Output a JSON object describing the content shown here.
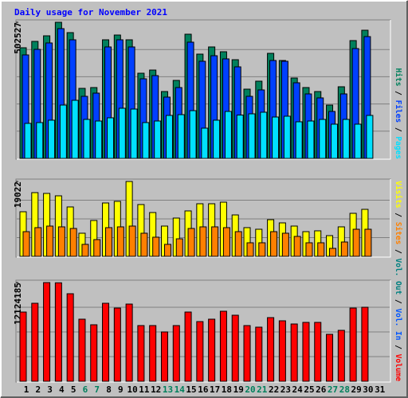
{
  "chart_data": [
    {
      "type": "bar",
      "title": "Daily usage for November 2021",
      "title_color": "#0000ff",
      "ylim": [
        0,
        502527
      ],
      "yticks": [
        502527
      ],
      "grid": true,
      "separator": "/",
      "series": [
        {
          "name": "Hits",
          "color": "#00805c",
          "values": [
            408500,
            432000,
            452600,
            502527,
            464400,
            258600,
            261600,
            437900,
            455500,
            437900,
            314500,
            326200,
            246900,
            288000,
            458500,
            385000,
            411500,
            393800,
            364400,
            255700,
            285100,
            387900,
            361500,
            296800,
            261600,
            246900,
            196900,
            264500,
            435000,
            473200,
            null
          ]
        },
        {
          "name": "Files",
          "color": "#0040ff",
          "values": [
            382100,
            402600,
            426200,
            479100,
            437900,
            229200,
            241000,
            411500,
            437900,
            411500,
            293900,
            305700,
            226300,
            261600,
            429100,
            358600,
            379100,
            367400,
            338000,
            229200,
            252800,
            361500,
            358600,
            279200,
            238100,
            223400,
            173400,
            238100,
            405600,
            449700,
            null
          ]
        },
        {
          "name": "Pages",
          "color": "#00e0ff",
          "values": [
            129300,
            132300,
            141100,
            196900,
            214500,
            144000,
            138100,
            149900,
            185200,
            182200,
            132300,
            138100,
            158700,
            161600,
            176300,
            111700,
            141100,
            173400,
            160000,
            164600,
            170500,
            152800,
            155800,
            135200,
            138100,
            144000,
            126400,
            144000,
            126400,
            158700,
            null
          ]
        }
      ]
    },
    {
      "type": "bar",
      "ylim": [
        0,
        19022
      ],
      "yticks": [
        19022
      ],
      "grid": true,
      "series": [
        {
          "name": "Visits",
          "color": "#ffff00",
          "values": [
            11330,
            16190,
            15990,
            15380,
            12550,
            5870,
            9110,
            13560,
            13970,
            19022,
            13160,
            11130,
            7690,
            9720,
            11540,
            13360,
            13360,
            13760,
            10520,
            7290,
            6880,
            9310,
            8500,
            7690,
            6270,
            6480,
            5260,
            7490,
            10930,
            11940,
            null
          ]
        },
        {
          "name": "Sites",
          "color": "#ff8000",
          "values": [
            6270,
            7290,
            7690,
            7490,
            7080,
            3040,
            4250,
            7290,
            7490,
            7690,
            5870,
            4860,
            3040,
            4450,
            7080,
            7490,
            7490,
            7290,
            6270,
            3440,
            3440,
            6270,
            5870,
            5060,
            3440,
            3440,
            2020,
            3640,
            6880,
            6880,
            null
          ]
        }
      ]
    },
    {
      "type": "bar",
      "ylim": [
        0,
        12124185
      ],
      "yticks": [
        12124185
      ],
      "grid": true,
      "categories": [
        "1",
        "2",
        "3",
        "4",
        "5",
        "6",
        "7",
        "8",
        "9",
        "10",
        "11",
        "12",
        "13",
        "14",
        "15",
        "16",
        "17",
        "18",
        "19",
        "20",
        "21",
        "22",
        "23",
        "24",
        "25",
        "26",
        "27",
        "28",
        "29",
        "30",
        "31"
      ],
      "category_colors": [
        "#000000",
        "#000000",
        "#000000",
        "#000000",
        "#000000",
        "#00805c",
        "#00805c",
        "#000000",
        "#000000",
        "#000000",
        "#000000",
        "#000000",
        "#00805c",
        "#00805c",
        "#000000",
        "#000000",
        "#000000",
        "#000000",
        "#000000",
        "#00805c",
        "#00805c",
        "#000000",
        "#000000",
        "#000000",
        "#000000",
        "#000000",
        "#00805c",
        "#00805c",
        "#000000",
        "#000000",
        "#000000"
      ],
      "legend": [
        {
          "name": "Vol. Out",
          "color": "#008080"
        },
        {
          "name": "Vol. In",
          "color": "#0055ff"
        }
      ],
      "series": [
        {
          "name": "Volume",
          "color": "#ff0000",
          "values": [
            8506000,
            9582000,
            12124185,
            12100000,
            10755000,
            7627000,
            6942000,
            9582000,
            8995000,
            9484000,
            6844000,
            6844000,
            6062000,
            6844000,
            8506000,
            7333000,
            7627000,
            8604000,
            8115000,
            6844000,
            6649000,
            7822000,
            7431000,
            7040000,
            7235000,
            7235000,
            5769000,
            6258000,
            8995000,
            9093000,
            null
          ]
        }
      ]
    }
  ]
}
